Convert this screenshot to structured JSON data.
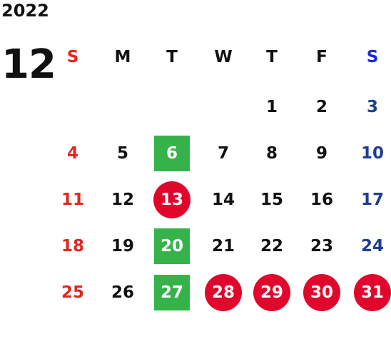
{
  "year": "2022",
  "month": "12",
  "weekdays": [
    "S",
    "M",
    "T",
    "W",
    "T",
    "F",
    "S"
  ],
  "weeks": [
    [
      "",
      "",
      "",
      "",
      "1",
      "2",
      "3"
    ],
    [
      "4",
      "5",
      "6",
      "7",
      "8",
      "9",
      "10"
    ],
    [
      "11",
      "12",
      "13",
      "14",
      "15",
      "16",
      "17"
    ],
    [
      "18",
      "19",
      "20",
      "21",
      "22",
      "23",
      "24"
    ],
    [
      "25",
      "26",
      "27",
      "28",
      "29",
      "30",
      "31"
    ]
  ],
  "green_days": [
    "6",
    "20",
    "27"
  ],
  "red_days": [
    "13",
    "28",
    "29",
    "30",
    "31"
  ],
  "colors": {
    "sunday": "#e3261e",
    "saturday": "#1d3f8c",
    "saturday_header": "#1a2cd6",
    "green_highlight": "#35b34a",
    "red_highlight": "#e1062b"
  }
}
